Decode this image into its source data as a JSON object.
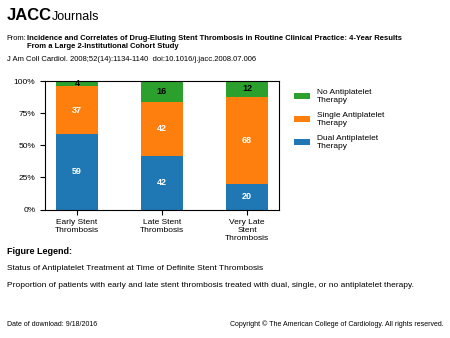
{
  "chart_data": {
    "type": "bar",
    "stacked": true,
    "data_labels": true,
    "legend": "upper left",
    "categories": [
      "Early Stent\nThrombosis",
      "Late Stent\nThrombosis",
      "Very Late\nStent\nThrombosis"
    ],
    "series": [
      {
        "name": "Dual Antiplatelet\nTherapy",
        "values": [
          59,
          42,
          20
        ]
      },
      {
        "name": "Single Antiplatelet\nTherapy",
        "values": [
          37,
          42,
          68
        ]
      },
      {
        "name": "No Antiplatelet\nTherapy",
        "values": [
          4,
          16,
          12
        ]
      }
    ],
    "ylim": [
      0,
      100
    ],
    "yticks": [
      {
        "value": 0,
        "label": "0%"
      },
      {
        "value": 25,
        "label": "25%"
      },
      {
        "value": 50,
        "label": "50%"
      },
      {
        "value": 75,
        "label": "75%"
      },
      {
        "value": 100,
        "label": "100%"
      }
    ],
    "annotations": [
      "JACC",
      "Journals",
      "From:",
      "Incidence and Correlates of Drug-Eluting Stent Thrombosis in Routine Clinical Practice: 4-Year Results\nFrom a Large 2-Institutional Cohort Study",
      "J Am Coll Cardiol. 2008;52(14):1134-1140  doi:10.1016/j.jacc.2008.07.006",
      "Figure Legend:",
      "Status of Antiplatelet Treatment at Time of Definite Stent Thrombosis",
      "Proportion of patients with early and late stent thrombosis treated with dual, single, or no antiplatelet therapy.",
      "Date of download: 9/18/2016",
      "Copyright © The American College of Cardiology. All rights reserved."
    ]
  }
}
